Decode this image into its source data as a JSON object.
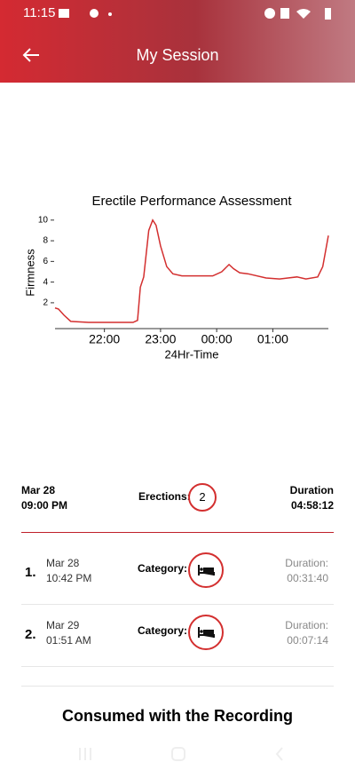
{
  "status_bar": {
    "time": "11:15"
  },
  "header": {
    "title": "My Session"
  },
  "chart_data": {
    "type": "line",
    "title": "Erectile Performance Assessment",
    "x_label": "24Hr-Time",
    "y_label": "Firmness",
    "color": "#d32f2f",
    "x": [
      21.12,
      21.18,
      21.28,
      21.4,
      21.72,
      22.51,
      22.59,
      22.64,
      22.7,
      22.79,
      22.86,
      22.92,
      23.0,
      23.11,
      23.22,
      23.38,
      23.93,
      24.09,
      24.22,
      24.3,
      24.41,
      24.56,
      24.88,
      25.12,
      25.27,
      25.43,
      25.59,
      25.8,
      25.89,
      25.99
    ],
    "values": [
      1.5,
      1.4,
      0.8,
      0.2,
      0.1,
      0.1,
      0.3,
      3.5,
      4.5,
      9.0,
      10.0,
      9.5,
      7.5,
      5.5,
      4.8,
      4.6,
      4.6,
      5.0,
      5.7,
      5.3,
      4.9,
      4.8,
      4.4,
      4.3,
      4.4,
      4.5,
      4.3,
      4.5,
      5.5,
      8.5
    ],
    "xlim": [
      21.12,
      25.99
    ],
    "ylim": [
      -0.5,
      10.5
    ],
    "xticks": [
      {
        "value": 22,
        "label": "22:00"
      },
      {
        "value": 23,
        "label": "23:00"
      },
      {
        "value": 24,
        "label": "00:00"
      },
      {
        "value": 25,
        "label": "01:00"
      }
    ],
    "yticks": [
      2,
      4,
      6,
      8,
      10
    ]
  },
  "session": {
    "date": "Mar 28",
    "time": "09:00 PM",
    "erections_label": "Erections:",
    "erections": "2",
    "duration_label": "Duration",
    "duration": "04:58:12"
  },
  "erections": [
    {
      "index": "1.",
      "date": "Mar 28",
      "time": "10:42 PM",
      "category_label": "Category:",
      "duration_label": "Duration:",
      "duration": "00:31:40"
    },
    {
      "index": "2.",
      "date": "Mar 29",
      "time": "01:51 AM",
      "category_label": "Category:",
      "duration_label": "Duration:",
      "duration": "00:07:14"
    }
  ],
  "footer": {
    "title": "Consumed with the Recording"
  }
}
